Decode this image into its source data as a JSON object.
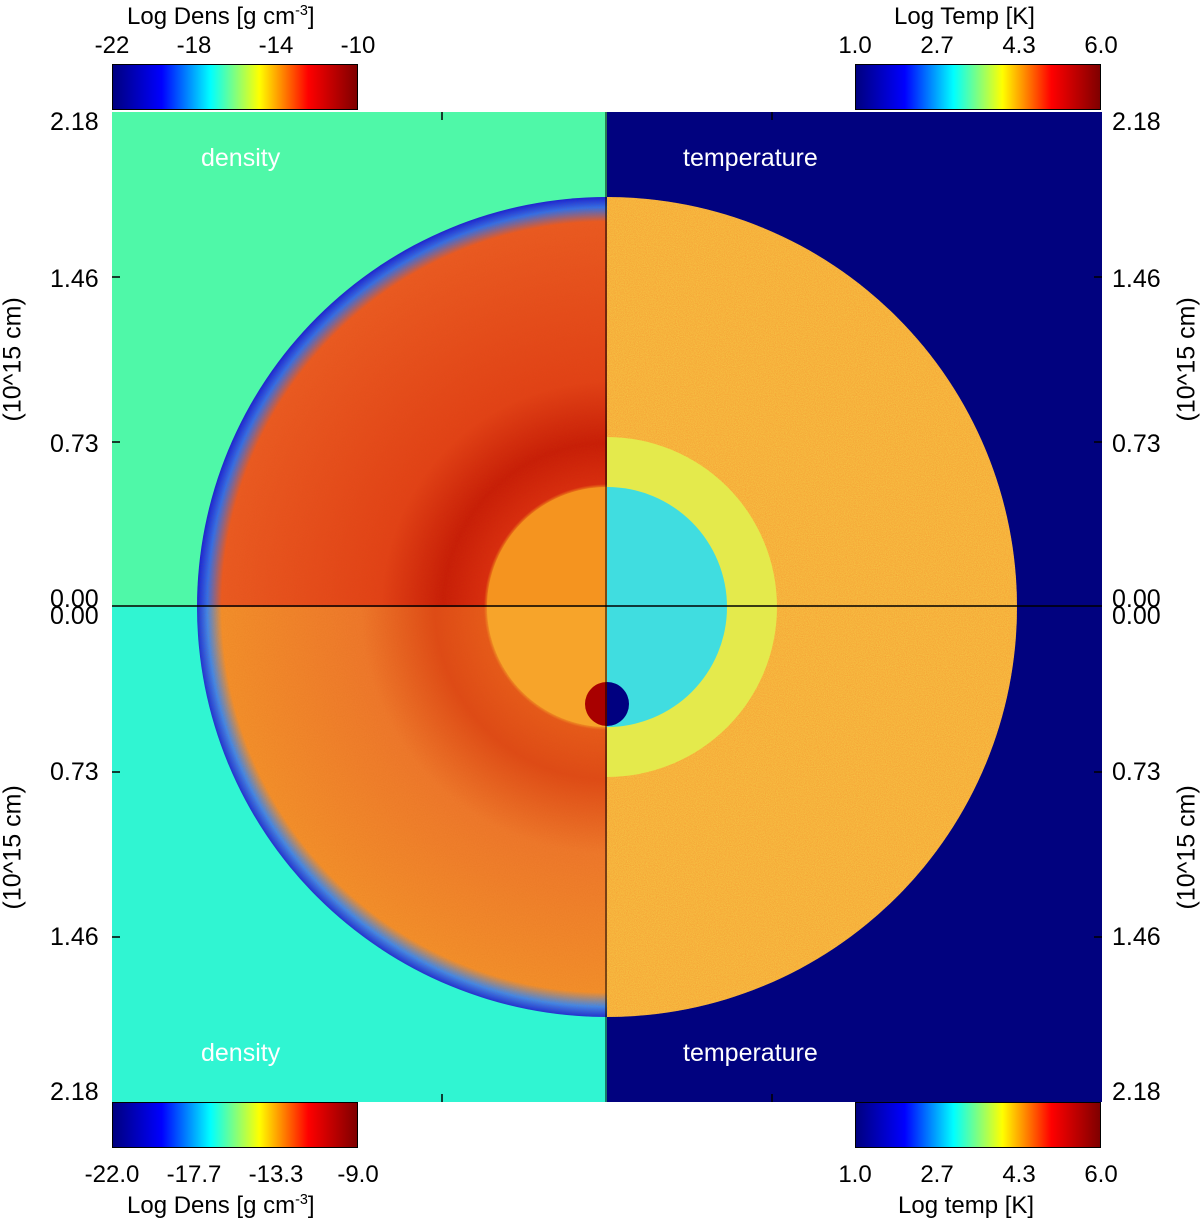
{
  "colorbars": {
    "top_left": {
      "title_text": "Log Dens [g cm",
      "title_sup": "-3",
      "title_tail": "]",
      "ticks": [
        "-22",
        "-18",
        "-14",
        "-10"
      ]
    },
    "top_right": {
      "title": "Log Temp [K]",
      "ticks": [
        "1.0",
        "2.7",
        "4.3",
        "6.0"
      ]
    },
    "bottom_left": {
      "title_text": "Log Dens [g cm",
      "title_sup": "-3",
      "title_tail": "]",
      "ticks": [
        "-22.0",
        "-17.7",
        "-13.3",
        "-9.0"
      ]
    },
    "bottom_right": {
      "title": "Log temp [K]",
      "ticks": [
        "1.0",
        "2.7",
        "4.3",
        "6.0"
      ]
    },
    "colormap": "jet",
    "colors": [
      "#00007f",
      "#0000ff",
      "#00ffff",
      "#ffff00",
      "#ff0000",
      "#7f0000"
    ]
  },
  "axes": {
    "left_ticks_top": [
      "2.18",
      "1.46",
      "0.73",
      "0.00"
    ],
    "left_ticks_bottom": [
      "0.00",
      "0.73",
      "1.46",
      "2.18"
    ],
    "right_ticks_top": [
      "2.18",
      "1.46",
      "0.73",
      "0.00"
    ],
    "right_ticks_bottom": [
      "0.00",
      "0.73",
      "1.46",
      "2.18"
    ],
    "y_label": "(10^15 cm)"
  },
  "panels": {
    "top_left": "density",
    "top_right": "temperature",
    "bottom_left": "density",
    "bottom_right": "temperature"
  },
  "colors": {
    "ambient_density_top": "#4ff8a8",
    "ambient_density_bottom": "#30f5d2",
    "ambient_temperature": "#01027f",
    "shell_density_top": "#e85020",
    "shell_density_bottom": "#f07a2e",
    "inner_density_top": "#f5941f",
    "inner_density_bottom": "#f7a42a",
    "shell_temperature": "#f59a32",
    "inner_ring_temperature": "#e4ea4c",
    "core_temperature": "#40dde0",
    "companion_density": "#a80000",
    "companion_temperature": "#000080",
    "edge_blue": "#1a4df2"
  }
}
